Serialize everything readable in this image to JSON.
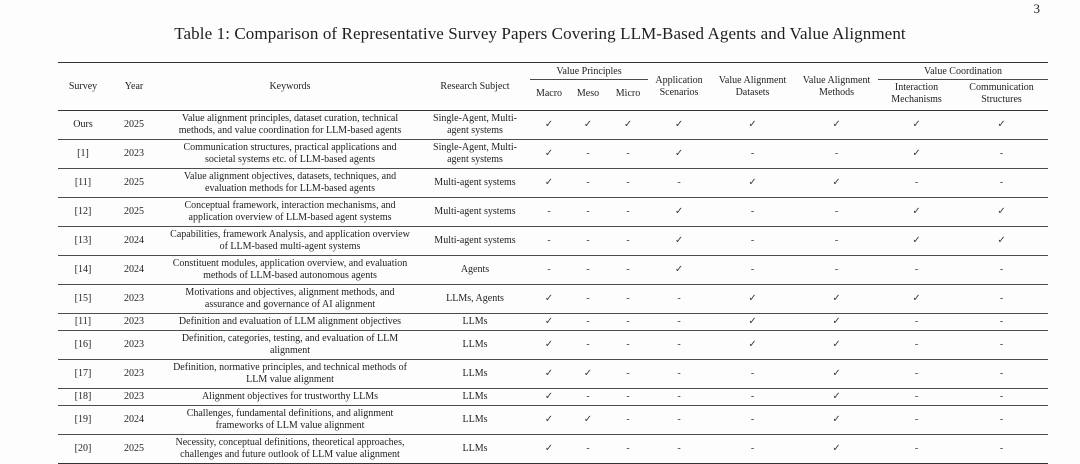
{
  "page": {
    "number": "3",
    "caption": "Table 1: Comparison of Representative Survey Papers Covering LLM-Based Agents and Value Alignment"
  },
  "colors": {
    "ink": "#1f1f1f",
    "rule": "#333333",
    "row_rule": "#4d4d4d"
  },
  "glyphs": {
    "check": "✓",
    "dash": "-"
  },
  "table": {
    "col_headers": {
      "survey": "Survey",
      "year": "Year",
      "keywords": "Keywords",
      "research_subject": "Research Subject",
      "value_principles": "Value Principles",
      "macro": "Macro",
      "meso": "Meso",
      "micro": "Micro",
      "application_scenarios": "Application Scenarios",
      "value_alignment_datasets": "Value Alignment Datasets",
      "value_alignment_methods": "Value Alignment Methods",
      "value_coordination": "Value Coordination",
      "interaction_mechanisms": "Interaction Mechanisms",
      "communication_structures": "Communication Structures"
    },
    "rows": [
      {
        "survey": "Ours",
        "year": "2025",
        "keywords": "Value alignment principles, dataset curation, technical methods, and value coordination for LLM-based agents",
        "research_subject": "Single-Agent, Multi-agent systems",
        "marks": [
          "✓",
          "✓",
          "✓",
          "✓",
          "✓",
          "✓",
          "✓",
          "✓"
        ]
      },
      {
        "survey": "[1]",
        "year": "2023",
        "keywords": "Communication structures, practical applications and societal systems etc. of LLM-based agents",
        "research_subject": "Single-Agent, Multi-agent systems",
        "marks": [
          "✓",
          "-",
          "-",
          "✓",
          "-",
          "-",
          "✓",
          "-"
        ]
      },
      {
        "survey": "[11]",
        "year": "2025",
        "keywords": "Value alignment objectives, datasets, techniques, and evaluation methods for LLM-based agents",
        "research_subject": "Multi-agent systems",
        "marks": [
          "✓",
          "-",
          "-",
          "-",
          "✓",
          "✓",
          "-",
          "-"
        ]
      },
      {
        "survey": "[12]",
        "year": "2025",
        "keywords": "Conceptual framework, interaction mechanisms, and application overview of LLM-based agent systems",
        "research_subject": "Multi-agent systems",
        "marks": [
          "-",
          "-",
          "-",
          "✓",
          "-",
          "-",
          "✓",
          "✓"
        ]
      },
      {
        "survey": "[13]",
        "year": "2024",
        "keywords": "Capabilities, framework Analysis, and application overview of LLM-based multi-agent systems",
        "research_subject": "Multi-agent systems",
        "marks": [
          "-",
          "-",
          "-",
          "✓",
          "-",
          "-",
          "✓",
          "✓"
        ]
      },
      {
        "survey": "[14]",
        "year": "2024",
        "keywords": "Constituent modules, application overview, and evaluation methods of LLM-based autonomous agents",
        "research_subject": "Agents",
        "marks": [
          "-",
          "-",
          "-",
          "✓",
          "-",
          "-",
          "-",
          "-"
        ]
      },
      {
        "survey": "[15]",
        "year": "2023",
        "keywords": "Motivations and objectives, alignment methods, and assurance and governance of AI alignment",
        "research_subject": "LLMs, Agents",
        "marks": [
          "✓",
          "-",
          "-",
          "-",
          "✓",
          "✓",
          "✓",
          "-"
        ]
      },
      {
        "survey": "[11]",
        "year": "2023",
        "keywords": "Definition and evaluation of LLM alignment objectives",
        "research_subject": "LLMs",
        "marks": [
          "✓",
          "-",
          "-",
          "-",
          "✓",
          "✓",
          "-",
          "-"
        ]
      },
      {
        "survey": "[16]",
        "year": "2023",
        "keywords": "Definition, categories, testing, and evaluation of LLM alignment",
        "research_subject": "LLMs",
        "marks": [
          "✓",
          "-",
          "-",
          "-",
          "✓",
          "✓",
          "-",
          "-"
        ]
      },
      {
        "survey": "[17]",
        "year": "2023",
        "keywords": "Definition, normative principles, and technical methods of LLM value alignment",
        "research_subject": "LLMs",
        "marks": [
          "✓",
          "✓",
          "-",
          "-",
          "-",
          "✓",
          "-",
          "-"
        ]
      },
      {
        "survey": "[18]",
        "year": "2023",
        "keywords": "Alignment objectives for trustworthy LLMs",
        "research_subject": "LLMs",
        "marks": [
          "✓",
          "-",
          "-",
          "-",
          "-",
          "✓",
          "-",
          "-"
        ]
      },
      {
        "survey": "[19]",
        "year": "2024",
        "keywords": "Challenges, fundamental definitions, and alignment frameworks of LLM value alignment",
        "research_subject": "LLMs",
        "marks": [
          "✓",
          "✓",
          "-",
          "-",
          "-",
          "✓",
          "-",
          "-"
        ]
      },
      {
        "survey": "[20]",
        "year": "2025",
        "keywords": "Necessity, conceptual definitions, theoretical approaches, challenges and future outlook of LLM value alignment",
        "research_subject": "LLMs",
        "marks": [
          "✓",
          "-",
          "-",
          "-",
          "-",
          "✓",
          "-",
          "-"
        ]
      }
    ]
  }
}
